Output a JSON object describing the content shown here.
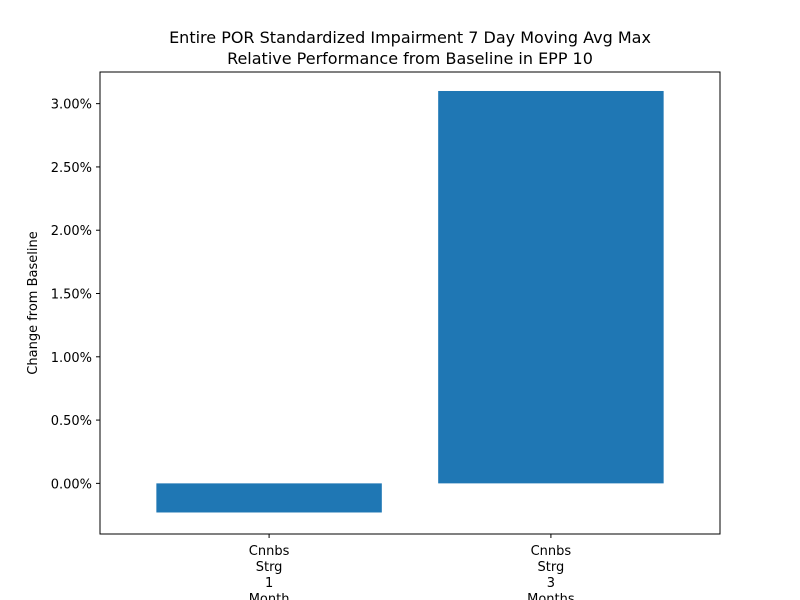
{
  "chart_data": {
    "type": "bar",
    "title_lines": [
      "Entire POR Standardized Impairment 7 Day Moving Avg Max",
      "Relative Performance from Baseline in EPP 10"
    ],
    "xlabel": "",
    "ylabel": "Change from Baseline",
    "categories": [
      [
        "Cnnbs",
        "Strg",
        "1",
        "Month"
      ],
      [
        "Cnnbs",
        "Strg",
        "3",
        "Months"
      ]
    ],
    "values": [
      -0.0023,
      0.031
    ],
    "ylim": [
      -0.004,
      0.0325
    ],
    "yticks": [
      0,
      0.005,
      0.01,
      0.015,
      0.02,
      0.025,
      0.03
    ],
    "ytick_labels": [
      "0.00%",
      "0.50%",
      "1.00%",
      "1.50%",
      "2.00%",
      "2.50%",
      "3.00%"
    ],
    "bar_color": "#1f77b4",
    "grid": false,
    "legend": "none"
  }
}
